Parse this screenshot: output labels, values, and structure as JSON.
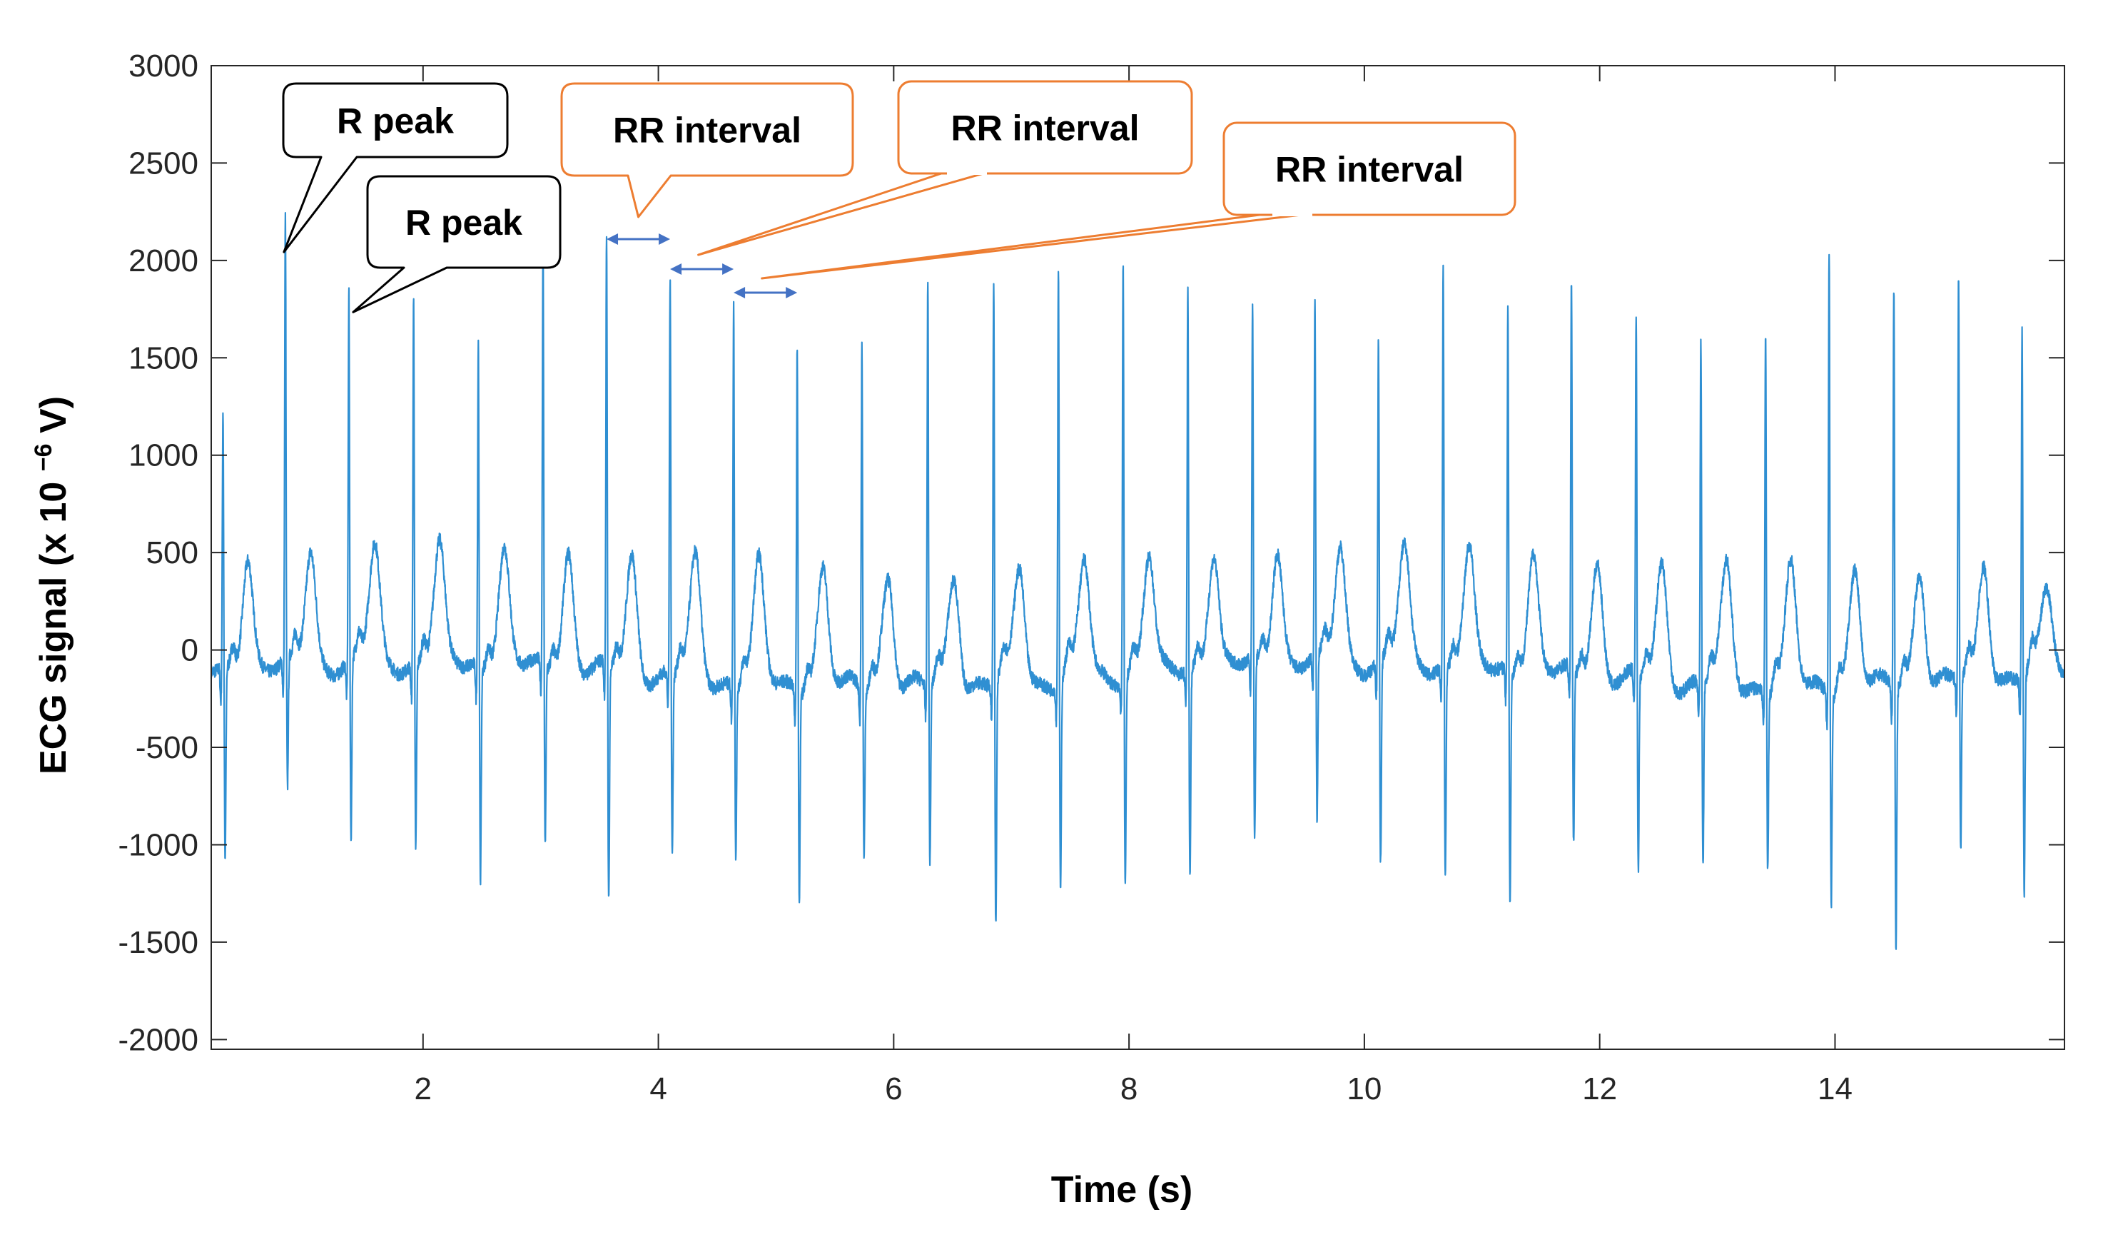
{
  "chart_data": {
    "type": "line",
    "title": "",
    "xlabel": "Time (s)",
    "ylabel_main": "ECG signal (x 10 ",
    "ylabel_sup": "−6",
    "ylabel_end": " V)",
    "xlim": [
      0.2,
      15.95
    ],
    "ylim": [
      -2050,
      3000
    ],
    "xticks": [
      2,
      4,
      6,
      8,
      10,
      12,
      14
    ],
    "yticks": [
      -2000,
      -1500,
      -1000,
      -500,
      0,
      500,
      1000,
      1500,
      2000,
      2500,
      3000
    ],
    "series": [
      {
        "name": "ECG signal",
        "color": "#2f8fd2",
        "r_peaks": [
          {
            "t": 0.3,
            "amp": 1140,
            "s": -1160
          },
          {
            "t": 0.83,
            "amp": 2080,
            "s": -830
          },
          {
            "t": 1.37,
            "amp": 1720,
            "s": -1100
          },
          {
            "t": 1.92,
            "amp": 1720,
            "s": -1100
          },
          {
            "t": 2.47,
            "amp": 1500,
            "s": -1250
          },
          {
            "t": 3.02,
            "amp": 2000,
            "s": -1080
          },
          {
            "t": 3.56,
            "amp": 2000,
            "s": -1370
          },
          {
            "t": 4.1,
            "amp": 1830,
            "s": -1080
          },
          {
            "t": 4.64,
            "amp": 1780,
            "s": -1060
          },
          {
            "t": 5.18,
            "amp": 1580,
            "s": -1200
          },
          {
            "t": 5.73,
            "amp": 1580,
            "s": -1020
          },
          {
            "t": 6.29,
            "amp": 1880,
            "s": -1080
          },
          {
            "t": 6.85,
            "amp": 1870,
            "s": -1420
          },
          {
            "t": 7.4,
            "amp": 1960,
            "s": -1240
          },
          {
            "t": 7.95,
            "amp": 1960,
            "s": -1230
          },
          {
            "t": 8.5,
            "amp": 1780,
            "s": -1230
          },
          {
            "t": 9.05,
            "amp": 1660,
            "s": -1080
          },
          {
            "t": 9.58,
            "amp": 1650,
            "s": -1010
          },
          {
            "t": 10.12,
            "amp": 1480,
            "s": -1210
          },
          {
            "t": 10.67,
            "amp": 1900,
            "s": -1220
          },
          {
            "t": 11.22,
            "amp": 1700,
            "s": -1330
          },
          {
            "t": 11.76,
            "amp": 1820,
            "s": -1050
          },
          {
            "t": 12.31,
            "amp": 1620,
            "s": -1160
          },
          {
            "t": 12.86,
            "amp": 1560,
            "s": -1080
          },
          {
            "t": 13.41,
            "amp": 1700,
            "s": -1060
          },
          {
            "t": 13.95,
            "amp": 2100,
            "s": -1230
          },
          {
            "t": 14.5,
            "amp": 1880,
            "s": -1490
          },
          {
            "t": 15.05,
            "amp": 1890,
            "s": -1050
          },
          {
            "t": 15.59,
            "amp": 1610,
            "s": -1290
          }
        ]
      }
    ],
    "annotations": [
      {
        "id": "r-peak-1",
        "text": "R peak",
        "style": "black",
        "point": [
          0.83,
          2080
        ]
      },
      {
        "id": "r-peak-2",
        "text": "R peak",
        "style": "black",
        "point": [
          1.37,
          1720
        ]
      },
      {
        "id": "rr-interval-1",
        "text": "RR interval",
        "style": "orange",
        "interval": [
          3.56,
          4.1
        ]
      },
      {
        "id": "rr-interval-2",
        "text": "RR interval",
        "style": "orange",
        "interval": [
          4.1,
          4.64
        ]
      },
      {
        "id": "rr-interval-3",
        "text": "RR interval",
        "style": "orange",
        "interval": [
          4.64,
          5.18
        ]
      }
    ]
  },
  "colors": {
    "signal": "#2f8fd2",
    "axis": "#262626",
    "callout_black": "#000000",
    "callout_orange": "#ed7d31",
    "arrow": "#4472c4"
  }
}
